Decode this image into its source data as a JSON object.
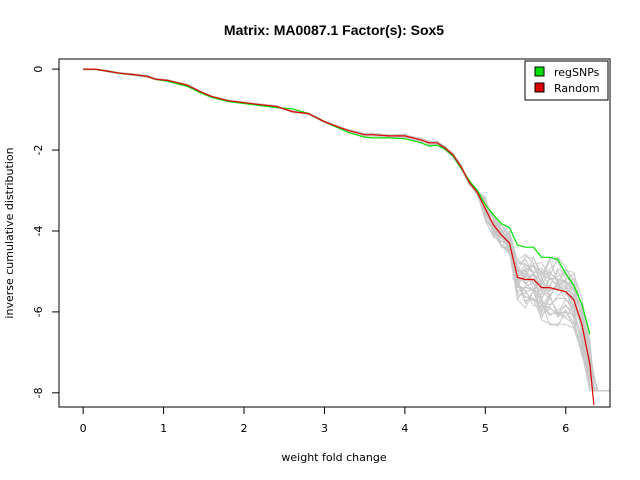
{
  "chart_data": {
    "type": "line",
    "title": "Matrix: MA0087.1 Factor(s): Sox5",
    "xlabel": "weight fold change",
    "ylabel": "inverse cumulative distribution",
    "xlim": [
      -0.3,
      6.55
    ],
    "ylim": [
      -8.35,
      0.25
    ],
    "x_ticks": [
      "0",
      "1",
      "2",
      "3",
      "4",
      "5",
      "6"
    ],
    "y_ticks": [
      "0",
      "-2",
      "-4",
      "-6",
      "-8"
    ],
    "grid": false,
    "legend_position": "top-right",
    "series": [
      {
        "name": "regSNPs",
        "color": "#00e000",
        "x": [
          0,
          0.15,
          0.3,
          0.45,
          0.6,
          0.8,
          0.9,
          1.05,
          1.2,
          1.3,
          1.45,
          1.6,
          1.8,
          2.0,
          2.2,
          2.4,
          2.6,
          2.8,
          3.0,
          3.2,
          3.3,
          3.5,
          3.6,
          3.8,
          4.0,
          4.2,
          4.3,
          4.4,
          4.5,
          4.6,
          4.7,
          4.8,
          4.9,
          5.0,
          5.1,
          5.2,
          5.3,
          5.4,
          5.5,
          5.6,
          5.7,
          5.8,
          5.9,
          6.0,
          6.1,
          6.2,
          6.3
        ],
        "y": [
          0,
          0,
          -0.05,
          -0.1,
          -0.13,
          -0.18,
          -0.25,
          -0.3,
          -0.38,
          -0.43,
          -0.58,
          -0.7,
          -0.8,
          -0.85,
          -0.9,
          -0.95,
          -0.98,
          -1.1,
          -1.3,
          -1.48,
          -1.57,
          -1.68,
          -1.7,
          -1.7,
          -1.72,
          -1.82,
          -1.9,
          -1.88,
          -1.98,
          -2.15,
          -2.45,
          -2.75,
          -3.0,
          -3.35,
          -3.6,
          -3.82,
          -3.92,
          -4.35,
          -4.4,
          -4.4,
          -4.65,
          -4.65,
          -4.7,
          -5.05,
          -5.35,
          -5.8,
          -6.55
        ]
      },
      {
        "name": "Random",
        "color": "#e00000",
        "x": [
          0,
          0.15,
          0.3,
          0.45,
          0.6,
          0.8,
          0.9,
          1.05,
          1.2,
          1.3,
          1.45,
          1.6,
          1.8,
          2.0,
          2.2,
          2.4,
          2.6,
          2.8,
          3.0,
          3.2,
          3.3,
          3.5,
          3.6,
          3.8,
          4.0,
          4.2,
          4.3,
          4.4,
          4.5,
          4.6,
          4.7,
          4.8,
          4.9,
          5.0,
          5.1,
          5.2,
          5.3,
          5.4,
          5.5,
          5.6,
          5.7,
          5.8,
          5.9,
          6.0,
          6.1,
          6.2,
          6.3,
          6.35
        ],
        "y": [
          0,
          0,
          -0.05,
          -0.1,
          -0.13,
          -0.18,
          -0.25,
          -0.28,
          -0.35,
          -0.4,
          -0.55,
          -0.68,
          -0.78,
          -0.83,
          -0.88,
          -0.92,
          -1.05,
          -1.1,
          -1.3,
          -1.45,
          -1.52,
          -1.62,
          -1.62,
          -1.65,
          -1.65,
          -1.75,
          -1.82,
          -1.82,
          -1.95,
          -2.12,
          -2.42,
          -2.8,
          -3.05,
          -3.45,
          -3.85,
          -4.1,
          -4.3,
          -5.15,
          -5.2,
          -5.2,
          -5.4,
          -5.4,
          -5.45,
          -5.5,
          -5.7,
          -6.3,
          -7.3,
          -8.3
        ]
      }
    ],
    "random_background": {
      "color": "#c8c8c8",
      "count": 30,
      "floor": -7.95,
      "x_end": 6.55
    }
  }
}
